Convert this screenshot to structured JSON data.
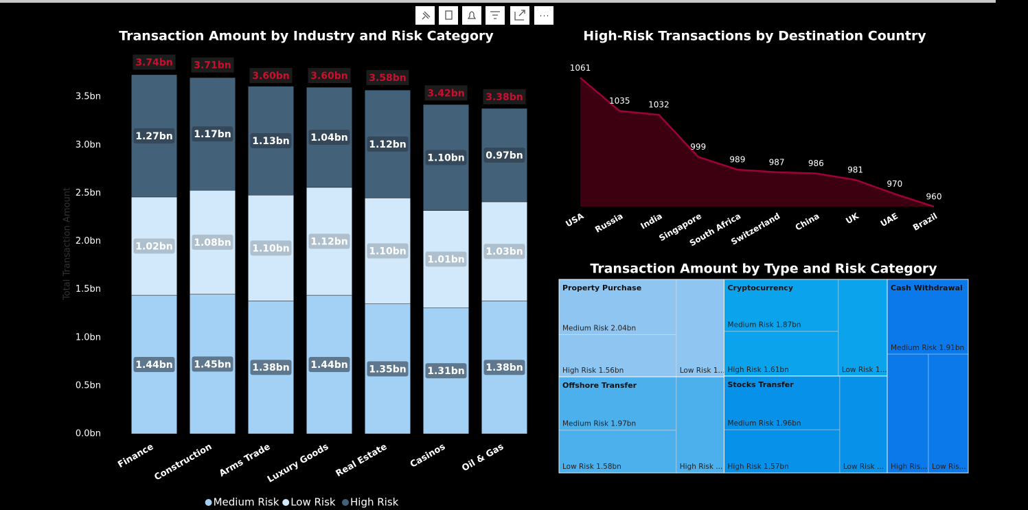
{
  "chart_data": [
    {
      "type": "bar",
      "stacked": true,
      "title": "Transaction Amount by Industry and Risk Category",
      "y_label": "Total Transaction Amount",
      "categories": [
        "Finance",
        "Construction",
        "Arms Trade",
        "Luxury Goods",
        "Real Estate",
        "Casinos",
        "Oil & Gas"
      ],
      "series": [
        {
          "name": "Medium Risk",
          "color": "#a3d0f5",
          "label_box": "#5e778c",
          "values": [
            1.44,
            1.45,
            1.38,
            1.44,
            1.35,
            1.31,
            1.38
          ],
          "value_labels": [
            "1.44bn",
            "1.45bn",
            "1.38bn",
            "1.44bn",
            "1.35bn",
            "1.31bn",
            "1.38bn"
          ]
        },
        {
          "name": "Low Risk",
          "color": "#d2e8fb",
          "label_box": "#aebfcd",
          "values": [
            1.02,
            1.08,
            1.1,
            1.12,
            1.1,
            1.01,
            1.03
          ],
          "value_labels": [
            "1.02bn",
            "1.08bn",
            "1.10bn",
            "1.12bn",
            "1.10bn",
            "1.01bn",
            "1.03bn"
          ]
        },
        {
          "name": "High Risk",
          "color": "#44617a",
          "label_box": "#34485a",
          "values": [
            1.27,
            1.17,
            1.13,
            1.04,
            1.12,
            1.1,
            0.97
          ],
          "value_labels": [
            "1.27bn",
            "1.17bn",
            "1.13bn",
            "1.04bn",
            "1.12bn",
            "1.10bn",
            "0.97bn"
          ]
        }
      ],
      "totals": {
        "values": [
          3.74,
          3.71,
          3.6,
          3.6,
          3.58,
          3.42,
          3.38
        ],
        "value_labels": [
          "3.74bn",
          "3.71bn",
          "3.60bn",
          "3.60bn",
          "3.58bn",
          "3.42bn",
          "3.38bn"
        ],
        "color": "#c8102e"
      },
      "ylim": [
        0,
        4
      ],
      "yticks": [
        {
          "value": 0,
          "label": "0.0bn"
        },
        {
          "value": 0.5,
          "label": "0.5bn"
        },
        {
          "value": 1,
          "label": "1.0bn"
        },
        {
          "value": 1.5,
          "label": "1.5bn"
        },
        {
          "value": 2,
          "label": "2.0bn"
        },
        {
          "value": 2.5,
          "label": "2.5bn"
        },
        {
          "value": 3,
          "label": "3.0bn"
        },
        {
          "value": 3.5,
          "label": "3.5bn"
        }
      ],
      "legend": "bottom"
    },
    {
      "type": "area",
      "title": "High-Risk Transactions by Destination Country",
      "categories": [
        "USA",
        "Russia",
        "India",
        "Singapore",
        "South Africa",
        "Switzerland",
        "China",
        "UK",
        "UAE",
        "Brazil"
      ],
      "values": [
        1061,
        1035,
        1032,
        999,
        989,
        987,
        986,
        981,
        970,
        960
      ],
      "color": "#a0003a",
      "fill": "#3d0010",
      "ylim": [
        960,
        1080
      ]
    },
    {
      "type": "treemap",
      "title": "Transaction Amount by Type and Risk Category",
      "groups": [
        {
          "name": "Property Purchase",
          "color": "#8fc5f1",
          "items": [
            {
              "label": "Medium Risk 2.04bn",
              "value": 2.04
            },
            {
              "label": "High Risk 1.56bn",
              "value": 1.56
            },
            {
              "label": "Low Risk 1...",
              "value": 1.47
            }
          ]
        },
        {
          "name": "Cryptocurrency",
          "color": "#0ba3ec",
          "items": [
            {
              "label": "Medium Risk 1.87bn",
              "value": 1.87
            },
            {
              "label": "High Risk 1.61bn",
              "value": 1.61
            },
            {
              "label": "Low Risk 1...",
              "value": 1.49
            }
          ]
        },
        {
          "name": "Cash Withdrawal",
          "color": "#0b79ea",
          "items": [
            {
              "label": "Medium Risk 1.91bn",
              "value": 1.91
            },
            {
              "label": "High Ris...",
              "value": 1.54
            },
            {
              "label": "Low Ris...",
              "value": 1.49
            }
          ]
        },
        {
          "name": "Offshore Transfer",
          "color": "#4bb0ec",
          "items": [
            {
              "label": "Medium Risk 1.97bn",
              "value": 1.97
            },
            {
              "label": "Low Risk 1.58bn",
              "value": 1.58
            },
            {
              "label": "High Risk ...",
              "value": 1.45
            }
          ]
        },
        {
          "name": "Stocks Transfer",
          "color": "#0891e8",
          "items": [
            {
              "label": "Medium Risk 1.96bn",
              "value": 1.96
            },
            {
              "label": "High Risk 1.57bn",
              "value": 1.57
            },
            {
              "label": "Low Risk ...",
              "value": 1.45
            }
          ]
        }
      ]
    }
  ]
}
